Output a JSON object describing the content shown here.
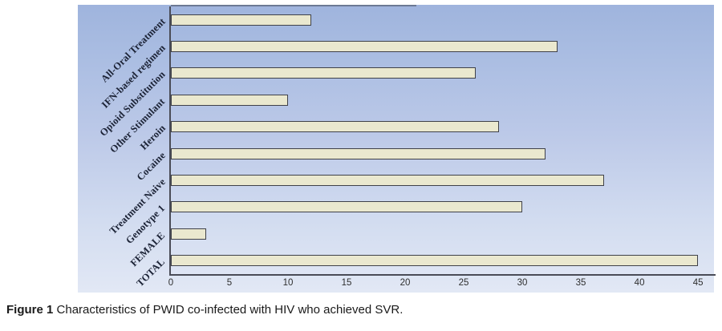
{
  "figure": {
    "caption_label": "Figure 1",
    "caption_text": " Characteristics of PWID co-infected with HIV who achieved SVR."
  },
  "chart_data": {
    "type": "bar",
    "orientation": "horizontal",
    "title": "",
    "xlabel": "",
    "ylabel": "",
    "categories": [
      "All-Oral Treatment",
      "IFN-based regimen",
      "Opioid Substitution",
      "Other Stimulant",
      "Heroin",
      "Cocaine",
      "Treatment Naive",
      "Genotype 1",
      "FEMALE",
      "TOTAL"
    ],
    "values": [
      12,
      33,
      26,
      10,
      28,
      32,
      37,
      30,
      3,
      45
    ],
    "x_ticks": [
      0,
      5,
      10,
      15,
      20,
      25,
      30,
      35,
      40,
      45
    ],
    "xlim": [
      0,
      46.5
    ],
    "grid": false,
    "legend_position": "none",
    "colors": {
      "bar_fill": "#eae8cf",
      "bar_border": "#3f4149",
      "plot_bg_top": "#9fb4dd",
      "plot_bg_bottom": "#e2e8f5",
      "axis": "#4a4c57",
      "category_label": "#1b2235",
      "tick_label": "#2e2e2e"
    }
  }
}
